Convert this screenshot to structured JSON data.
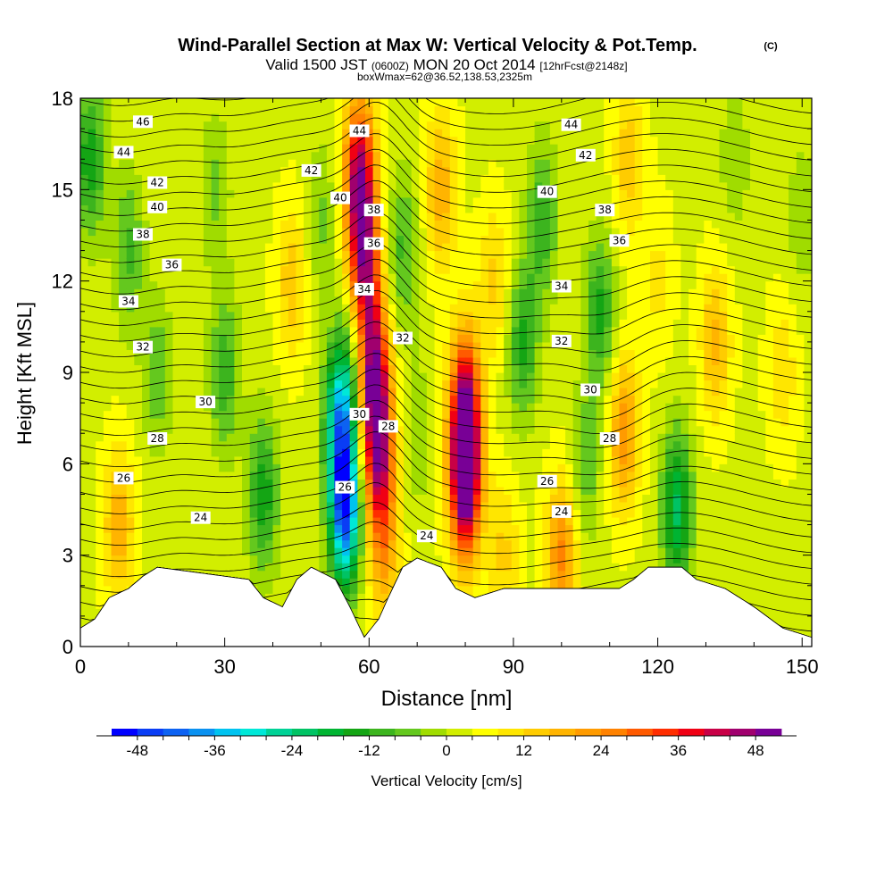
{
  "chart_data": {
    "type": "heatmap",
    "title": "Wind-Parallel Section at Max W: Vertical Velocity & Pot.Temp.",
    "copyright": "(C)",
    "subtitle_main": "Valid 1500 JST",
    "subtitle_z": "(0600Z)",
    "subtitle_date": "MON 20 Oct 2014",
    "subtitle_fcst": "[12hrFcst@2148z]",
    "subtitle2": "boxWmax=62@36.52,138.53,2325m",
    "xlabel": "Distance [nm]",
    "ylabel": "Height [Kft MSL]",
    "xlim": [
      0,
      152
    ],
    "ylim": [
      0,
      18
    ],
    "x_ticks": [
      0,
      30,
      60,
      90,
      120,
      150
    ],
    "x_tick_labels": [
      "0",
      "30",
      "60",
      "90",
      "120",
      "150"
    ],
    "y_ticks": [
      0,
      3,
      6,
      9,
      12,
      15,
      18
    ],
    "y_tick_labels": [
      "0",
      "3",
      "6",
      "9",
      "12",
      "15",
      "18"
    ],
    "colorbar": {
      "label": "Vertical Velocity [cm/s]",
      "min": -52,
      "max": 52,
      "step": 4,
      "tick_values": [
        -48,
        -36,
        -24,
        -12,
        0,
        12,
        24,
        36,
        48
      ],
      "tick_labels": [
        "-48",
        "-36",
        "-24",
        "-12",
        "0",
        "12",
        "24",
        "36",
        "48"
      ],
      "colors": [
        "#0000ff",
        "#0a3df5",
        "#0d62f2",
        "#0a91f0",
        "#00c3f0",
        "#00e8d8",
        "#00d296",
        "#00c364",
        "#00b432",
        "#14a514",
        "#3cb41e",
        "#64c81e",
        "#a0dc00",
        "#d2ee00",
        "#ffff00",
        "#ffe600",
        "#ffcc00",
        "#ffb400",
        "#ff9b00",
        "#ff8200",
        "#ff5a00",
        "#ff2d00",
        "#f00014",
        "#c80046",
        "#a0006e",
        "#780096"
      ]
    },
    "velocity_features": [
      {
        "x": 2,
        "z": 16,
        "w": -18
      },
      {
        "x": 10,
        "z": 13,
        "w": -12
      },
      {
        "x": 16,
        "z": 9,
        "w": -10
      },
      {
        "x": 8,
        "z": 4,
        "w": 16
      },
      {
        "x": 28,
        "z": 15,
        "w": -8
      },
      {
        "x": 30,
        "z": 9,
        "w": -14
      },
      {
        "x": 38,
        "z": 5,
        "w": -18
      },
      {
        "x": 44,
        "z": 12,
        "w": 12
      },
      {
        "x": 50,
        "z": 14,
        "w": -8
      },
      {
        "x": 55,
        "z": 4.5,
        "w": -46
      },
      {
        "x": 54,
        "z": 7.5,
        "w": -34
      },
      {
        "x": 57,
        "z": 10,
        "w": -8
      },
      {
        "x": 58,
        "z": 15.5,
        "w": 40
      },
      {
        "x": 59,
        "z": 12.5,
        "w": 36
      },
      {
        "x": 61,
        "z": 9,
        "w": 38
      },
      {
        "x": 62,
        "z": 6.5,
        "w": 34
      },
      {
        "x": 63,
        "z": 3.5,
        "w": 18
      },
      {
        "x": 67,
        "z": 13,
        "w": -12
      },
      {
        "x": 70,
        "z": 7,
        "w": -6
      },
      {
        "x": 75,
        "z": 15,
        "w": 16
      },
      {
        "x": 80,
        "z": 5.5,
        "w": 52
      },
      {
        "x": 80,
        "z": 8,
        "w": 34
      },
      {
        "x": 86,
        "z": 12,
        "w": 10
      },
      {
        "x": 88,
        "z": 3,
        "w": 10
      },
      {
        "x": 92,
        "z": 10,
        "w": -16
      },
      {
        "x": 96,
        "z": 14,
        "w": -14
      },
      {
        "x": 100,
        "z": 3,
        "w": 22
      },
      {
        "x": 105,
        "z": 6,
        "w": -10
      },
      {
        "x": 108,
        "z": 11,
        "w": -16
      },
      {
        "x": 113,
        "z": 7,
        "w": 20
      },
      {
        "x": 114,
        "z": 16,
        "w": 12
      },
      {
        "x": 124,
        "z": 4.5,
        "w": -24
      },
      {
        "x": 120,
        "z": 12,
        "w": 6
      },
      {
        "x": 132,
        "z": 10,
        "w": 14
      },
      {
        "x": 136,
        "z": 16,
        "w": -6
      },
      {
        "x": 146,
        "z": 9,
        "w": 8
      },
      {
        "x": 150,
        "z": 14,
        "w": -6
      }
    ],
    "theta_contour_labels": [
      {
        "text": "46",
        "x": 13,
        "z": 17.2
      },
      {
        "text": "44",
        "x": 9,
        "z": 16.2
      },
      {
        "text": "42",
        "x": 16,
        "z": 15.2
      },
      {
        "text": "40",
        "x": 16,
        "z": 14.4
      },
      {
        "text": "38",
        "x": 13,
        "z": 13.5
      },
      {
        "text": "36",
        "x": 19,
        "z": 12.5
      },
      {
        "text": "34",
        "x": 10,
        "z": 11.3
      },
      {
        "text": "32",
        "x": 13,
        "z": 9.8
      },
      {
        "text": "30",
        "x": 26,
        "z": 8.0
      },
      {
        "text": "28",
        "x": 16,
        "z": 6.8
      },
      {
        "text": "26",
        "x": 9,
        "z": 5.5
      },
      {
        "text": "24",
        "x": 25,
        "z": 4.2
      },
      {
        "text": "44",
        "x": 58,
        "z": 16.9
      },
      {
        "text": "42",
        "x": 48,
        "z": 15.6
      },
      {
        "text": "40",
        "x": 54,
        "z": 14.7
      },
      {
        "text": "38",
        "x": 61,
        "z": 14.3
      },
      {
        "text": "36",
        "x": 61,
        "z": 13.2
      },
      {
        "text": "34",
        "x": 59,
        "z": 11.7
      },
      {
        "text": "32",
        "x": 67,
        "z": 10.1
      },
      {
        "text": "30",
        "x": 58,
        "z": 7.6
      },
      {
        "text": "28",
        "x": 64,
        "z": 7.2
      },
      {
        "text": "26",
        "x": 55,
        "z": 5.2
      },
      {
        "text": "24",
        "x": 72,
        "z": 3.6
      },
      {
        "text": "44",
        "x": 102,
        "z": 17.1
      },
      {
        "text": "42",
        "x": 105,
        "z": 16.1
      },
      {
        "text": "40",
        "x": 97,
        "z": 14.9
      },
      {
        "text": "38",
        "x": 109,
        "z": 14.3
      },
      {
        "text": "36",
        "x": 112,
        "z": 13.3
      },
      {
        "text": "34",
        "x": 100,
        "z": 11.8
      },
      {
        "text": "32",
        "x": 100,
        "z": 10.0
      },
      {
        "text": "30",
        "x": 106,
        "z": 8.4
      },
      {
        "text": "28",
        "x": 110,
        "z": 6.8
      },
      {
        "text": "26",
        "x": 97,
        "z": 5.4
      },
      {
        "text": "24",
        "x": 100,
        "z": 4.4
      }
    ],
    "terrain_profile_kft": [
      [
        0,
        0.6
      ],
      [
        3,
        0.9
      ],
      [
        6,
        1.6
      ],
      [
        10,
        1.9
      ],
      [
        13,
        2.3
      ],
      [
        16,
        2.6
      ],
      [
        35,
        2.2
      ],
      [
        38,
        1.6
      ],
      [
        42,
        1.3
      ],
      [
        45,
        2.2
      ],
      [
        48,
        2.6
      ],
      [
        53,
        2.2
      ],
      [
        56,
        1.3
      ],
      [
        59,
        0.3
      ],
      [
        62,
        0.9
      ],
      [
        64,
        1.6
      ],
      [
        67,
        2.6
      ],
      [
        70,
        2.9
      ],
      [
        75,
        2.6
      ],
      [
        78,
        1.9
      ],
      [
        82,
        1.6
      ],
      [
        88,
        1.9
      ],
      [
        100,
        1.9
      ],
      [
        112,
        1.9
      ],
      [
        115,
        2.2
      ],
      [
        118,
        2.6
      ],
      [
        125,
        2.6
      ],
      [
        128,
        2.2
      ],
      [
        134,
        1.9
      ],
      [
        140,
        1.3
      ],
      [
        146,
        0.6
      ],
      [
        152,
        0.3
      ]
    ]
  }
}
